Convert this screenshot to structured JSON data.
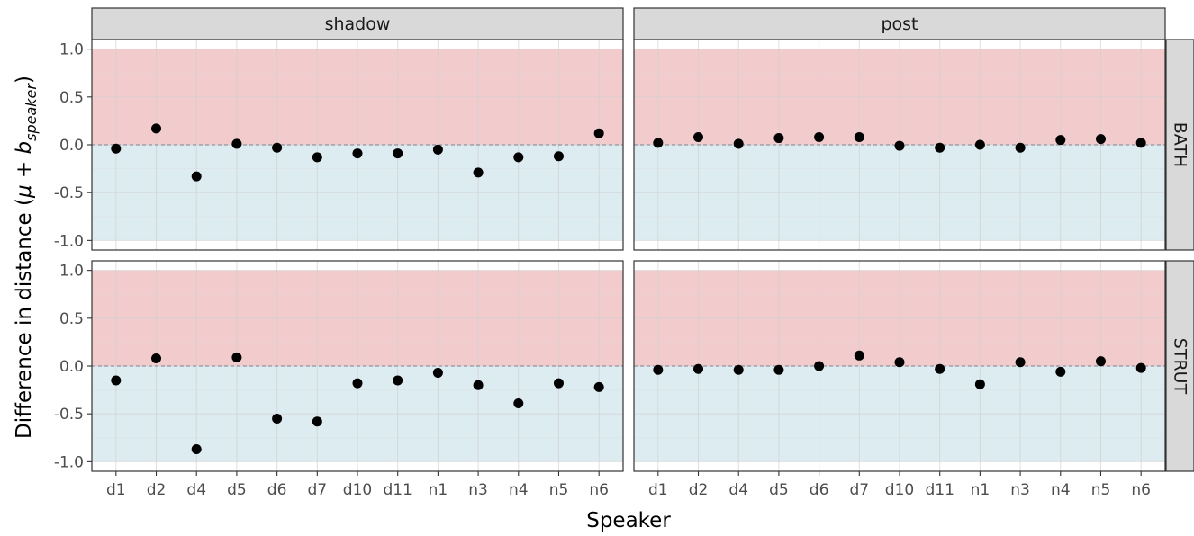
{
  "chart_data": {
    "type": "scatter",
    "ylabel_prefix": "Difference in distance (",
    "ylabel_mu": "μ",
    "ylabel_plus": " + ",
    "ylabel_b": "b",
    "ylabel_sub": "speaker",
    "ylabel_suffix": ")",
    "xlabel": "Speaker",
    "categories": [
      "d1",
      "d2",
      "d4",
      "d5",
      "d6",
      "d7",
      "d10",
      "d11",
      "n1",
      "n3",
      "n4",
      "n5",
      "n6"
    ],
    "yticks": [
      "-1.0",
      "-0.5",
      "0.0",
      "0.5",
      "1.0"
    ],
    "ylim": [
      -1.1,
      1.1
    ],
    "grid": true,
    "shading": {
      "above_zero_color": "#f2cccd",
      "below_zero_color": "#ddecf1",
      "range": [
        -1,
        1
      ]
    },
    "reference_line": 0,
    "point_color": "#000000",
    "columns": [
      "shadow",
      "post"
    ],
    "rows": [
      "BATH",
      "STRUT"
    ],
    "panels": [
      {
        "column": "shadow",
        "row": "BATH",
        "values": [
          -0.04,
          0.17,
          -0.33,
          0.01,
          -0.03,
          -0.13,
          -0.09,
          -0.09,
          -0.05,
          -0.29,
          -0.13,
          -0.12,
          0.12
        ]
      },
      {
        "column": "post",
        "row": "BATH",
        "values": [
          0.02,
          0.08,
          0.01,
          0.07,
          0.08,
          0.08,
          -0.01,
          -0.03,
          0.0,
          -0.03,
          0.05,
          0.06,
          0.02
        ]
      },
      {
        "column": "shadow",
        "row": "STRUT",
        "values": [
          -0.15,
          0.08,
          -0.87,
          0.09,
          -0.55,
          -0.58,
          -0.18,
          -0.15,
          -0.07,
          -0.2,
          -0.39,
          -0.18,
          -0.22
        ]
      },
      {
        "column": "post",
        "row": "STRUT",
        "values": [
          -0.04,
          -0.03,
          -0.04,
          -0.04,
          0.0,
          0.11,
          0.04,
          -0.03,
          -0.19,
          0.04,
          -0.06,
          0.05,
          -0.02
        ]
      }
    ]
  }
}
